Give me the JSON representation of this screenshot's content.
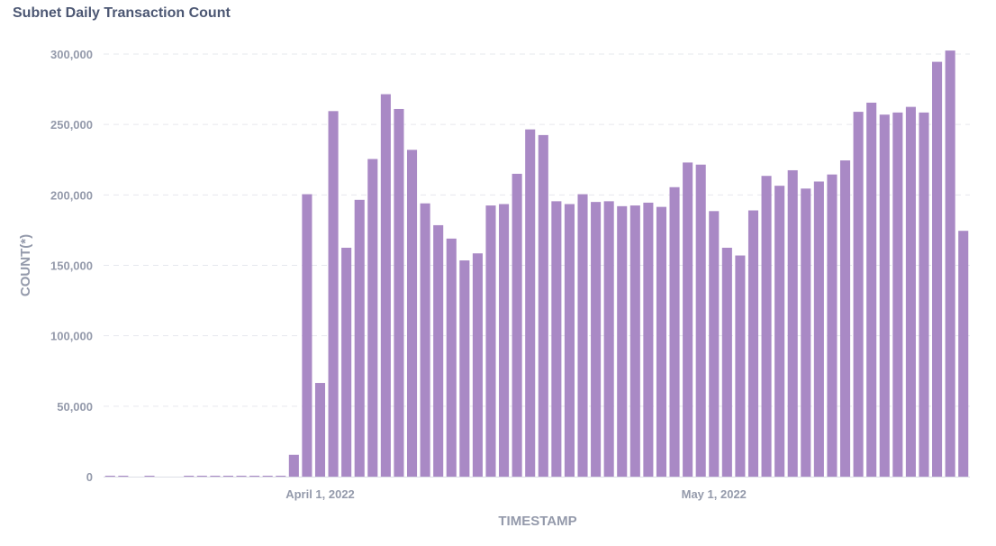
{
  "chart_data": {
    "type": "bar",
    "title": "Subnet Daily Transaction Count",
    "xlabel": "TIMESTAMP",
    "ylabel": "COUNT(*)",
    "ylim": [
      0,
      300000
    ],
    "yticks": [
      0,
      50000,
      100000,
      150000,
      200000,
      250000,
      300000
    ],
    "ytick_labels": [
      "0",
      "50,000",
      "100,000",
      "150,000",
      "200,000",
      "250,000",
      "300,000"
    ],
    "xtick_labels": [
      {
        "label": "April 1, 2022",
        "index": 16
      },
      {
        "label": "May 1, 2022",
        "index": 46
      }
    ],
    "bar_color": "#a989c5",
    "grid": true,
    "values": [
      500,
      500,
      0,
      500,
      0,
      0,
      500,
      500,
      500,
      500,
      500,
      500,
      500,
      500,
      15500,
      200500,
      66500,
      259500,
      162500,
      196500,
      225500,
      271500,
      261000,
      232000,
      194000,
      178500,
      169000,
      153500,
      158500,
      192500,
      193500,
      215000,
      246500,
      242500,
      195500,
      193500,
      200500,
      195000,
      195500,
      192000,
      192500,
      194500,
      191500,
      205500,
      223000,
      221500,
      188500,
      162500,
      157000,
      189000,
      213500,
      206500,
      217500,
      204500,
      209500,
      214500,
      224500,
      259000,
      265500,
      257000,
      258500,
      262500,
      258500,
      294500,
      302500,
      174500
    ]
  }
}
